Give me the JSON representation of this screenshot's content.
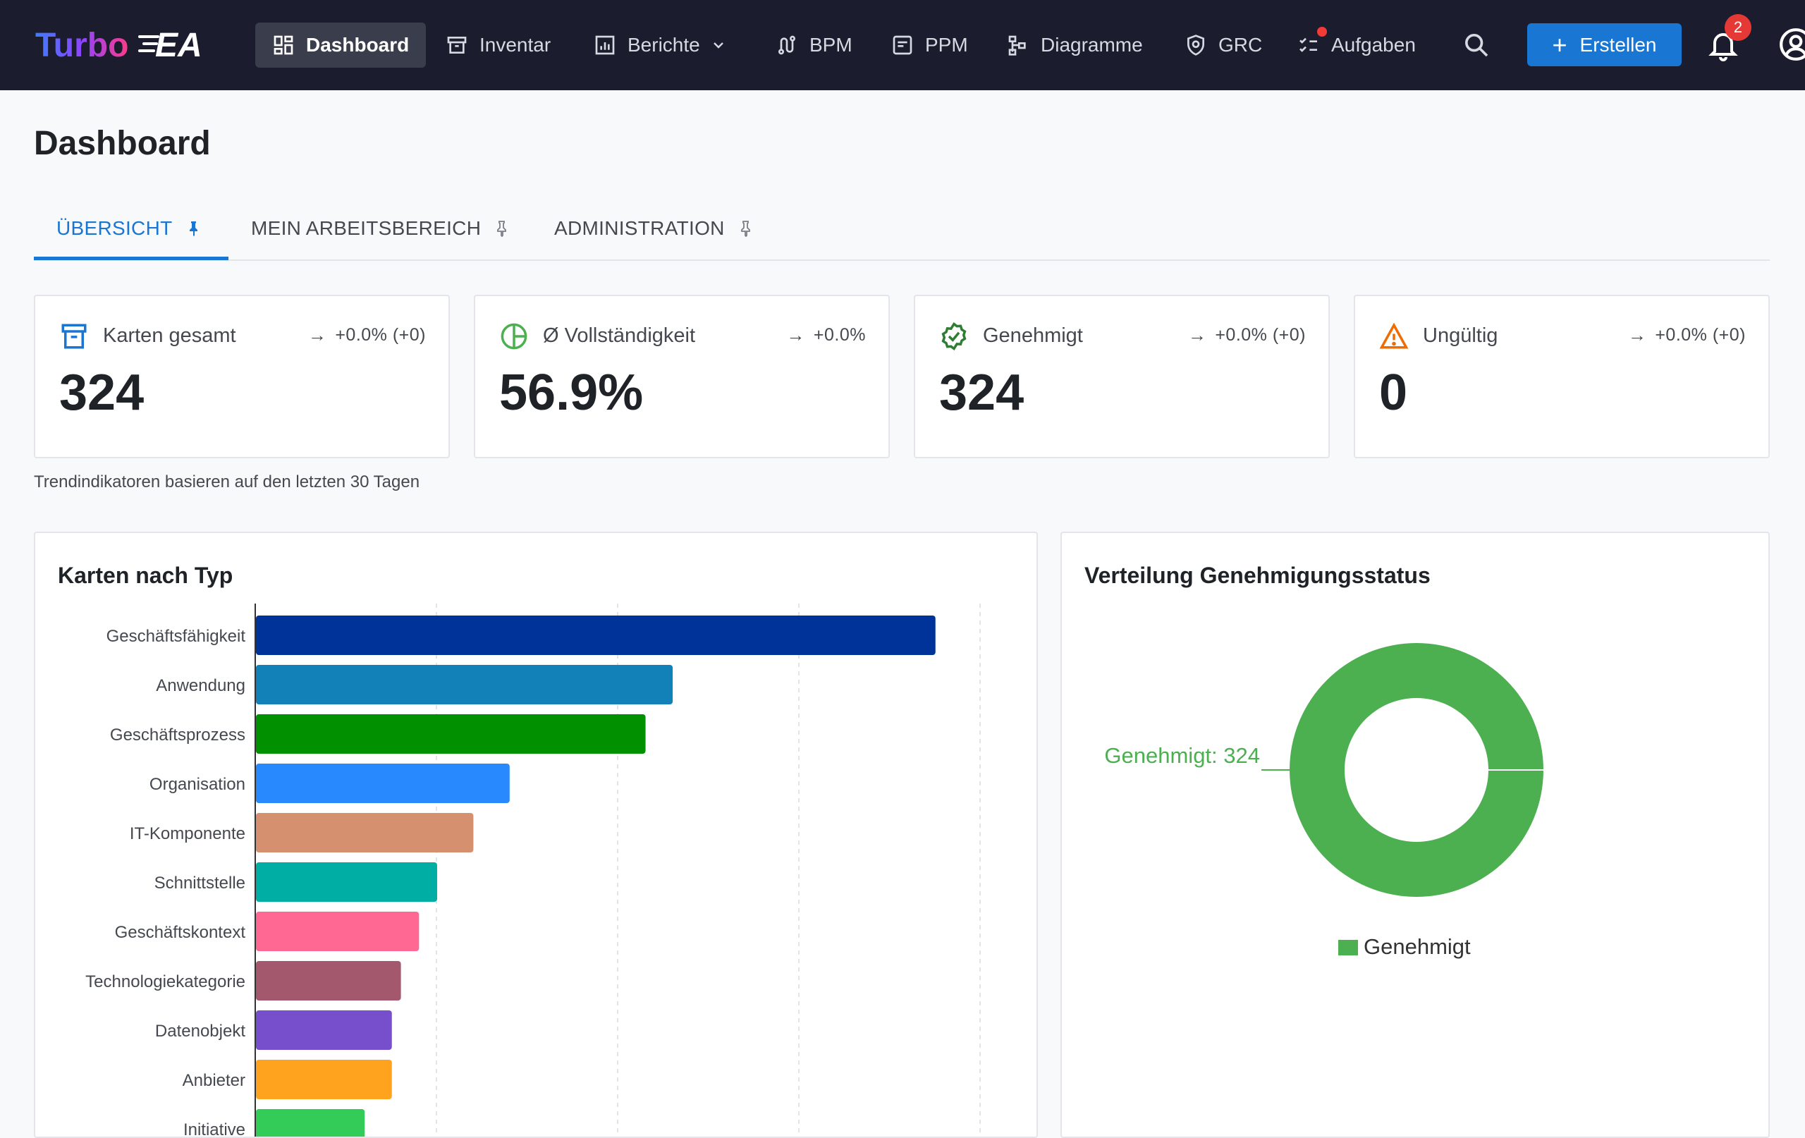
{
  "nav": {
    "logo_text": "TurboEA",
    "items": [
      {
        "label": "Dashboard",
        "icon": "dashboard-icon"
      },
      {
        "label": "Inventar",
        "icon": "archive-icon"
      },
      {
        "label": "Berichte",
        "icon": "chart-icon"
      },
      {
        "label": "BPM",
        "icon": "route-icon"
      },
      {
        "label": "PPM",
        "icon": "project-icon"
      },
      {
        "label": "Diagramme",
        "icon": "hierarchy-icon"
      },
      {
        "label": "GRC",
        "icon": "shield-icon"
      },
      {
        "label": "Aufgaben",
        "icon": "checklist-icon"
      }
    ],
    "create_label": "Erstellen",
    "notification_count": "2"
  },
  "page": {
    "title": "Dashboard"
  },
  "tabs": [
    {
      "label": "ÜBERSICHT",
      "active": true
    },
    {
      "label": "MEIN ARBEITSBEREICH",
      "active": false
    },
    {
      "label": "ADMINISTRATION",
      "active": false
    }
  ],
  "kpis": [
    {
      "label": "Karten gesamt",
      "value": "324",
      "trend": "+0.0% (+0)",
      "icon": "archive-icon",
      "color": "#1976d2"
    },
    {
      "label": "Ø Vollständigkeit",
      "value": "56.9%",
      "trend": "+0.0%",
      "icon": "pie-icon",
      "color": "#4caf50"
    },
    {
      "label": "Genehmigt",
      "value": "324",
      "trend": "+0.0% (+0)",
      "icon": "verified-icon",
      "color": "#2e7d32"
    },
    {
      "label": "Ungültig",
      "value": "0",
      "trend": "+0.0% (+0)",
      "icon": "warning-icon",
      "color": "#ef6c00"
    }
  ],
  "kpi_note": "Trendindikatoren basieren auf den letzten 30 Tagen",
  "bar_panel": {
    "title": "Karten nach Typ"
  },
  "donut_panel": {
    "title": "Verteilung Genehmigungsstatus"
  },
  "chart_data": [
    {
      "type": "bar",
      "orientation": "horizontal",
      "title": "Karten nach Typ",
      "categories": [
        "Geschäftsfähigkeit",
        "Anwendung",
        "Geschäftsprozess",
        "Organisation",
        "IT-Komponente",
        "Schnittstelle",
        "Geschäftskontext",
        "Technologiekategorie",
        "Datenobjekt",
        "Anbieter",
        "Initiative"
      ],
      "values": [
        75,
        46,
        43,
        28,
        24,
        20,
        18,
        16,
        15,
        15,
        12
      ],
      "colors": [
        "#003399",
        "#1281b8",
        "#009000",
        "#2889ff",
        "#d4906f",
        "#00aea4",
        "#ff6893",
        "#a4586d",
        "#774fcc",
        "#ffa31f",
        "#33cc58"
      ],
      "xlim": [
        0,
        80
      ],
      "grid": true
    },
    {
      "type": "pie",
      "donut": true,
      "title": "Verteilung Genehmigungsstatus",
      "labels": [
        "Genehmigt"
      ],
      "values": [
        324
      ],
      "colors": [
        "#4caf50"
      ],
      "data_labels": [
        "Genehmigt: 324"
      ],
      "legend": "bottom"
    }
  ]
}
